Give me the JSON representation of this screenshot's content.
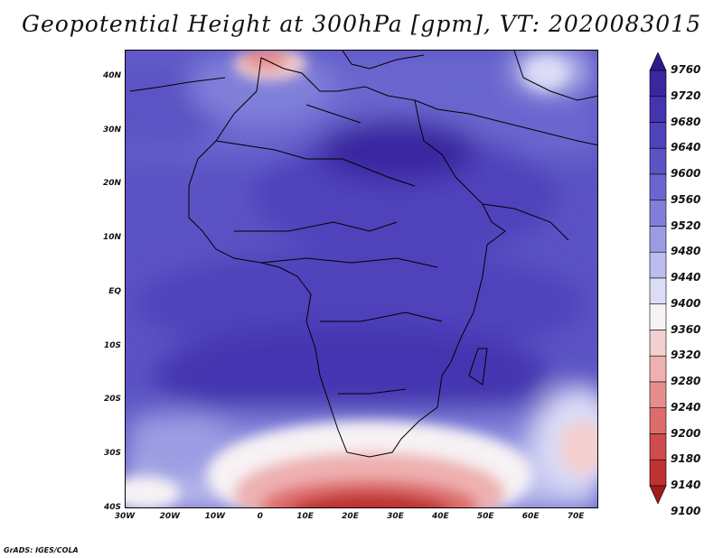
{
  "title": "Geopotential Height at 300hPa [gpm], VT: 2020083015",
  "credit": "GrADS: IGES/COLA",
  "map": {
    "lon_range": [
      -30,
      75
    ],
    "lat_range": [
      -40,
      45
    ],
    "lat_ticks": [
      "40N",
      "30N",
      "20N",
      "10N",
      "EQ",
      "10S",
      "20S",
      "30S",
      "40S"
    ],
    "lat_values": [
      40,
      30,
      20,
      10,
      0,
      -10,
      -20,
      -30,
      -40
    ],
    "lon_ticks": [
      "30W",
      "20W",
      "10W",
      "0",
      "10E",
      "20E",
      "30E",
      "40E",
      "50E",
      "60E",
      "70E"
    ],
    "lon_values": [
      -30,
      -20,
      -10,
      0,
      10,
      20,
      30,
      40,
      50,
      60,
      70
    ]
  },
  "colorbar": {
    "levels": [
      "9760",
      "9720",
      "9680",
      "9640",
      "9600",
      "9560",
      "9520",
      "9480",
      "9440",
      "9400",
      "9360",
      "9320",
      "9280",
      "9240",
      "9200",
      "9180",
      "9140",
      "9100"
    ],
    "colors": [
      "#2e1a8c",
      "#3a27a0",
      "#4534b0",
      "#4f43bb",
      "#5b53c4",
      "#6b66cf",
      "#8080da",
      "#9b9de3",
      "#bcbdee",
      "#dcdcf6",
      "#f7f2f4",
      "#f3cfcf",
      "#eeb0b0",
      "#e68e8e",
      "#dd6d6d",
      "#cf4c4c",
      "#be3232",
      "#a51a1a"
    ]
  }
}
